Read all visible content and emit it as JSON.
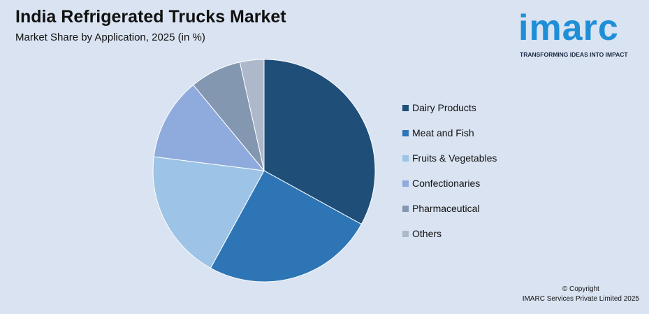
{
  "header": {
    "title": "India Refrigerated Trucks Market",
    "subtitle": "Market Share by Application, 2025 (in %)"
  },
  "logo": {
    "word": "imarc",
    "tagline": "TRANSFORMING IDEAS INTO IMPACT",
    "color": "#1e8fd6"
  },
  "footer": {
    "copyright_line1": "© Copyright",
    "copyright_line2": "IMARC Services Private Limited 2025"
  },
  "chart_data": {
    "type": "pie",
    "title": "India Refrigerated Trucks Market",
    "subtitle": "Market Share by Application, 2025 (in %)",
    "legend_position": "right",
    "categories": [
      "Dairy Products",
      "Meat and Fish",
      "Fruits & Vegetables",
      "Confectionaries",
      "Pharmaceutical",
      "Others"
    ],
    "values": [
      33,
      25,
      19,
      12,
      7.5,
      3.5
    ],
    "colors": [
      "#1f4e79",
      "#2e75b6",
      "#9dc3e6",
      "#8faadc",
      "#8497b0",
      "#adb9ca"
    ]
  }
}
